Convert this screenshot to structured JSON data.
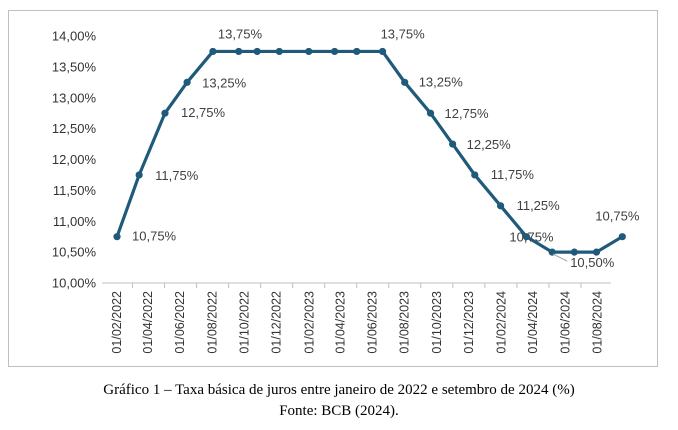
{
  "chart_data": {
    "type": "line",
    "title": "",
    "xlabel": "",
    "ylabel": "",
    "ylim": [
      10.0,
      14.0
    ],
    "yticks": [
      "10,00%",
      "10,50%",
      "11,00%",
      "11,50%",
      "12,00%",
      "12,50%",
      "13,00%",
      "13,50%",
      "14,00%"
    ],
    "ytick_values": [
      10.0,
      10.5,
      11.0,
      11.5,
      12.0,
      12.5,
      13.0,
      13.5,
      14.0
    ],
    "xtick_labels": [
      "01/02/2022",
      "01/04/2022",
      "01/06/2022",
      "01/08/2022",
      "01/10/2022",
      "01/12/2022",
      "01/02/2023",
      "01/04/2023",
      "01/06/2023",
      "01/08/2023",
      "01/10/2023",
      "01/12/2023",
      "01/02/2024",
      "01/04/2024",
      "01/06/2024",
      "01/08/2024"
    ],
    "grid": false,
    "line_color": "#1f5a7a",
    "series": [
      {
        "x": [
          "2022-02-02",
          "2022-03-16",
          "2022-05-04",
          "2022-06-15",
          "2022-08-03",
          "2022-09-21",
          "2022-10-26",
          "2022-12-07",
          "2023-02-01",
          "2023-03-22",
          "2023-05-03",
          "2023-06-21",
          "2023-08-02",
          "2023-09-20",
          "2023-11-01",
          "2023-12-13",
          "2024-01-31",
          "2024-03-20",
          "2024-05-08",
          "2024-06-19",
          "2024-07-31",
          "2024-09-18"
        ],
        "values": [
          10.75,
          11.75,
          12.75,
          13.25,
          13.75,
          13.75,
          13.75,
          13.75,
          13.75,
          13.75,
          13.75,
          13.75,
          13.25,
          12.75,
          12.25,
          11.75,
          11.25,
          10.75,
          10.5,
          10.5,
          10.5,
          10.75
        ]
      }
    ],
    "data_labels": [
      {
        "text": "10,75%",
        "x": "2022-02-02",
        "value": 10.75
      },
      {
        "text": "11,75%",
        "x": "2022-03-16",
        "value": 11.75
      },
      {
        "text": "12,75%",
        "x": "2022-05-04",
        "value": 12.75
      },
      {
        "text": "13,25%",
        "x": "2022-06-15",
        "value": 13.25
      },
      {
        "text": "13,75%",
        "x": "2022-08-03",
        "value": 13.75
      },
      {
        "text": "13,75%",
        "x": "2023-06-21",
        "value": 13.75
      },
      {
        "text": "13,25%",
        "x": "2023-08-02",
        "value": 13.25
      },
      {
        "text": "12,75%",
        "x": "2023-09-20",
        "value": 12.75
      },
      {
        "text": "12,25%",
        "x": "2023-11-01",
        "value": 12.25
      },
      {
        "text": "11,75%",
        "x": "2023-12-13",
        "value": 11.75
      },
      {
        "text": "11,25%",
        "x": "2024-01-31",
        "value": 11.25
      },
      {
        "text": "10,75%",
        "x": "2024-03-20",
        "value": 10.75
      },
      {
        "text": "10,50%",
        "x": "2024-05-08",
        "value": 10.5
      },
      {
        "text": "10,75%",
        "x": "2024-09-18",
        "value": 10.75
      }
    ]
  },
  "caption": {
    "title": "Gráfico 1 – Taxa básica de juros entre janeiro de 2022 e setembro de 2024 (%)",
    "source": "Fonte: BCB (2024)."
  }
}
